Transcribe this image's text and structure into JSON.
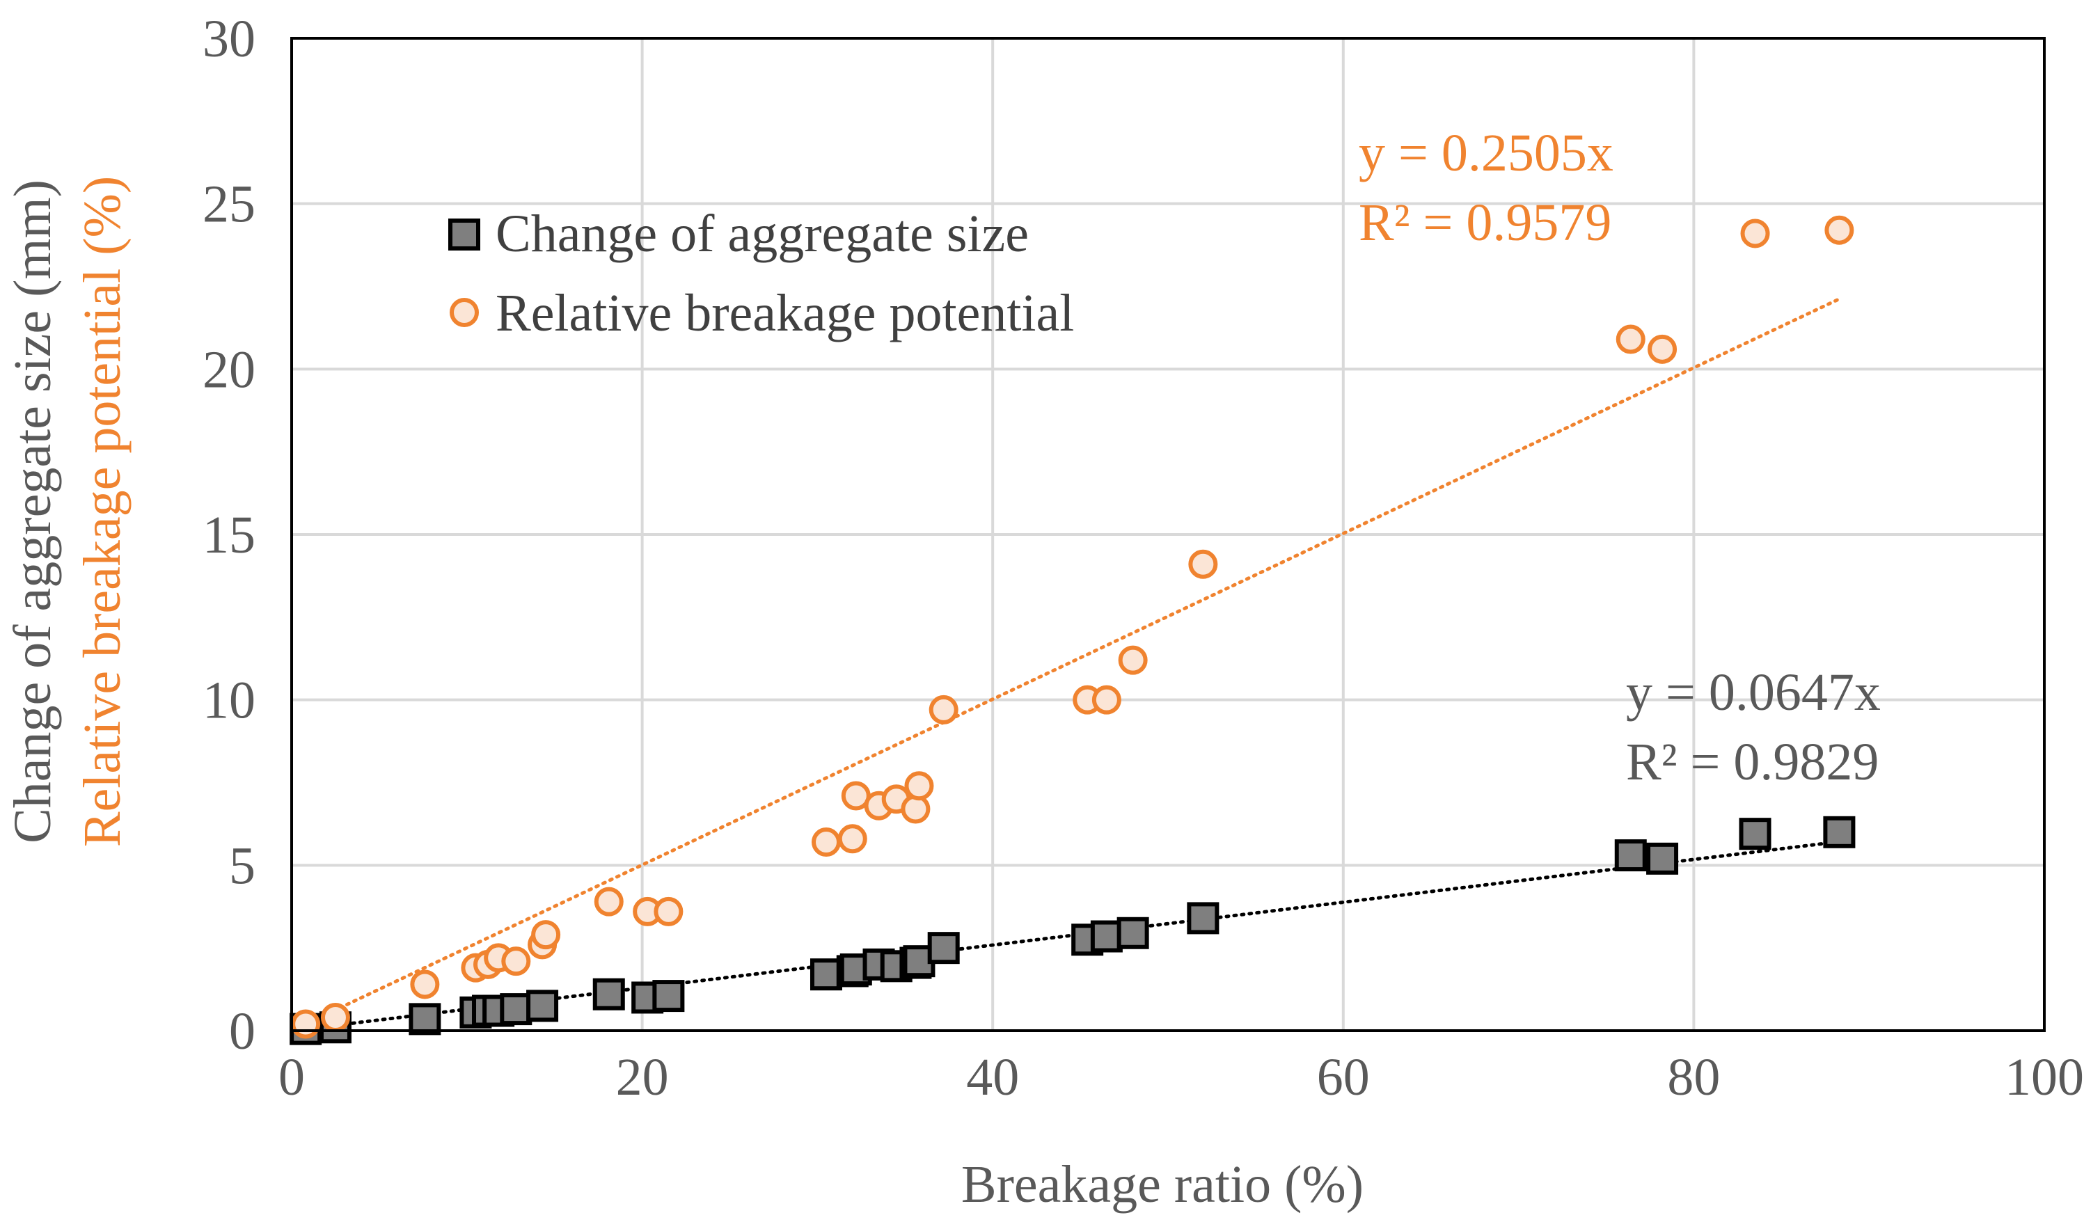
{
  "chart_data": {
    "type": "scatter",
    "xlabel": "Breakage ratio (%)",
    "ylabel_lines": [
      "Change of aggregate size (mm)",
      "Relative breakage potential (%)"
    ],
    "xlim": [
      0,
      100
    ],
    "ylim": [
      0,
      30
    ],
    "xticks": [
      0,
      20,
      40,
      60,
      80,
      100
    ],
    "yticks": [
      0,
      5,
      10,
      15,
      20,
      25,
      30
    ],
    "grid": true,
    "legend_position": "top-left",
    "colors": {
      "orange": "#f0832f",
      "square_fill": "#7f7f7f",
      "square_stroke": "#000000",
      "axis_text": "#595959",
      "grid": "#d9d9d9"
    },
    "series": [
      {
        "name": "Change of aggregate size",
        "marker": "square",
        "x": [
          0.8,
          2.5,
          7.6,
          10.5,
          11.2,
          11.8,
          12.8,
          14.3,
          18.1,
          20.3,
          21.5,
          30.5,
          32.0,
          32.2,
          33.5,
          34.5,
          35.6,
          35.8,
          37.2,
          45.4,
          46.5,
          48.0,
          52.0,
          76.4,
          78.2,
          83.5,
          88.3
        ],
        "y": [
          0.05,
          0.1,
          0.35,
          0.55,
          0.6,
          0.6,
          0.65,
          0.75,
          1.1,
          1.0,
          1.05,
          1.7,
          1.8,
          1.85,
          2.0,
          1.95,
          2.05,
          2.1,
          2.5,
          2.75,
          2.85,
          2.95,
          3.4,
          5.3,
          5.2,
          5.95,
          6.0
        ],
        "trendline": {
          "slope": 0.0647,
          "x_range": [
            0,
            88.3
          ],
          "equation": "y = 0.0647x",
          "r2": "R² = 0.9829"
        }
      },
      {
        "name": "Relative breakage potential",
        "marker": "circle",
        "x": [
          0.8,
          2.5,
          7.6,
          10.5,
          11.2,
          11.8,
          12.8,
          14.3,
          14.5,
          18.1,
          20.3,
          21.5,
          30.5,
          32.0,
          32.2,
          33.5,
          34.5,
          35.6,
          35.8,
          37.2,
          45.4,
          46.5,
          48.0,
          52.0,
          76.4,
          78.2,
          83.5,
          88.3
        ],
        "y": [
          0.2,
          0.4,
          1.4,
          1.9,
          2.0,
          2.2,
          2.1,
          2.6,
          2.9,
          3.9,
          3.6,
          3.6,
          5.7,
          5.8,
          7.1,
          6.8,
          7.0,
          6.7,
          7.4,
          9.7,
          10.0,
          10.0,
          11.2,
          14.1,
          20.9,
          20.6,
          24.1,
          24.2
        ],
        "trendline": {
          "slope": 0.2505,
          "x_range": [
            0,
            88.3
          ],
          "equation": "y = 0.2505x",
          "r2": "R² = 0.9579"
        }
      }
    ]
  }
}
